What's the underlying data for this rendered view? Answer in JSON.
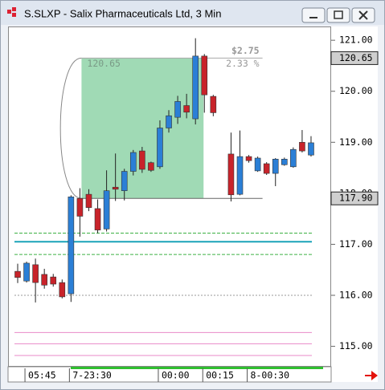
{
  "chart_data": {
    "type": "candlestick",
    "title": "S.SLXP - Salix Pharmaceuticals Ltd, 3 Min",
    "categories": [
      null,
      "05:45",
      null,
      null,
      null,
      null,
      "7-23:30",
      null,
      null,
      null,
      null,
      null,
      null,
      null,
      null,
      null,
      "00:00",
      null,
      null,
      null,
      null,
      "00:15",
      null,
      null,
      null,
      null,
      "8-00:30",
      null,
      null,
      null,
      null,
      null,
      null,
      null
    ],
    "open": [
      116.47,
      116.28,
      116.6,
      116.41,
      116.36,
      116.25,
      116.03,
      117.9,
      117.98,
      117.7,
      117.3,
      118.12,
      118.05,
      118.43,
      118.83,
      118.6,
      118.52,
      119.28,
      119.49,
      119.72,
      119.46,
      120.69,
      119.9,
      null,
      118.77,
      117.98,
      118.72,
      118.44,
      118.58,
      118.39,
      118.56,
      118.52,
      119.0,
      118.75
    ],
    "high": [
      116.62,
      116.66,
      116.72,
      116.52,
      116.42,
      116.31,
      117.96,
      118.1,
      118.08,
      117.88,
      118.45,
      118.78,
      118.48,
      118.85,
      118.91,
      118.62,
      119.43,
      119.63,
      119.91,
      119.95,
      121.04,
      120.73,
      119.93,
      null,
      119.19,
      119.23,
      118.75,
      118.72,
      118.61,
      118.69,
      118.7,
      118.9,
      119.24,
      119.12
    ],
    "low": [
      116.24,
      116.25,
      115.86,
      116.13,
      116.17,
      115.94,
      115.87,
      117.15,
      117.65,
      117.22,
      117.25,
      117.85,
      117.86,
      118.35,
      118.4,
      118.42,
      118.48,
      119.19,
      119.36,
      119.47,
      119.35,
      119.58,
      119.51,
      null,
      117.84,
      117.96,
      118.6,
      118.42,
      118.36,
      118.14,
      118.54,
      118.5,
      118.8,
      118.72
    ],
    "close": [
      116.35,
      116.63,
      116.25,
      116.2,
      116.22,
      115.97,
      117.93,
      117.55,
      117.72,
      117.28,
      118.05,
      118.08,
      118.43,
      118.8,
      118.47,
      118.45,
      119.28,
      119.52,
      119.8,
      119.59,
      120.69,
      119.93,
      119.58,
      null,
      117.97,
      118.72,
      118.64,
      118.69,
      118.39,
      118.67,
      118.67,
      118.86,
      118.83,
      118.99
    ],
    "up_color": "#2b7fd6",
    "down_color": "#c8232a",
    "ylim": [
      114.6,
      121.27
    ],
    "yticks": [
      {
        "value": 121,
        "label": "121.00"
      },
      {
        "value": 120,
        "label": "120.00"
      },
      {
        "value": 119,
        "label": "119.00"
      },
      {
        "value": 118,
        "label": "118.00"
      },
      {
        "value": 117,
        "label": "117.00"
      },
      {
        "value": 116,
        "label": "116.00"
      },
      {
        "value": 115,
        "label": "115.00"
      }
    ],
    "price_markers": [
      {
        "value": 120.65,
        "label": "120.65"
      },
      {
        "value": 117.9,
        "label": "117.90"
      }
    ],
    "measure": {
      "change_label": "$2.75",
      "percent_label": "2.33 %",
      "color": "#8fd4a8"
    },
    "levels": [
      {
        "value": 117.05,
        "color": "#1aa3b8",
        "style": "solid"
      },
      {
        "value": 117.22,
        "color": "#3cb043",
        "style": "dashed"
      },
      {
        "value": 116.8,
        "color": "#3cb043",
        "style": "dashed"
      },
      {
        "value": 116.0,
        "color": "#999999",
        "style": "dotted"
      },
      {
        "value": 115.27,
        "color": "#e88ac8",
        "style": "solid"
      },
      {
        "value": 115.05,
        "color": "#e88ac8",
        "style": "solid"
      },
      {
        "value": 114.82,
        "color": "#e88ac8",
        "style": "solid"
      }
    ]
  }
}
